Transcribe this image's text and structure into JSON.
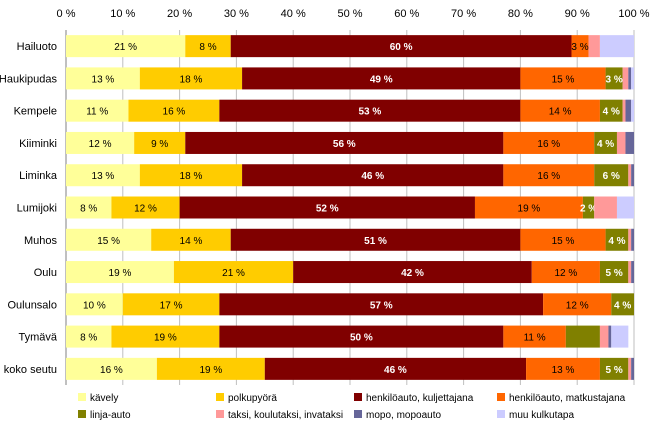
{
  "chart_data": {
    "type": "bar",
    "orientation": "horizontal",
    "stacked": true,
    "normalized": true,
    "title": "",
    "xlabel": "",
    "ylabel": "",
    "xlim": [
      0,
      100
    ],
    "grid": true,
    "legend_position": "bottom",
    "x_ticks": [
      0,
      10,
      20,
      30,
      40,
      50,
      60,
      70,
      80,
      90,
      100
    ],
    "tick_suffix": " %",
    "categories": [
      "Hailuoto",
      "Haukipudas",
      "Kempele",
      "Kiiminki",
      "Liminka",
      "Lumijoki",
      "Muhos",
      "Oulu",
      "Oulunsalo",
      "Tymävä",
      "koko seutu"
    ],
    "series": [
      {
        "name": "kävely",
        "color": "#FFFF99",
        "values": [
          21,
          13,
          11,
          12,
          13,
          8,
          15,
          19,
          10,
          8,
          16
        ],
        "labels": [
          "21 %",
          "13 %",
          "11 %",
          "12 %",
          "13 %",
          "8 %",
          "15 %",
          "19 %",
          "10 %",
          "8 %",
          "16 %"
        ]
      },
      {
        "name": "polkupyörä",
        "color": "#FFCC00",
        "values": [
          8,
          18,
          16,
          9,
          18,
          12,
          14,
          21,
          17,
          19,
          19
        ],
        "labels": [
          "8 %",
          "18 %",
          "16 %",
          "9 %",
          "18 %",
          "12 %",
          "14 %",
          "21 %",
          "17 %",
          "19 %",
          "19 %"
        ]
      },
      {
        "name": "henkilöauto, kuljettajana",
        "color": "#800000",
        "values": [
          60,
          49,
          53,
          56,
          46,
          52,
          51,
          42,
          57,
          50,
          46
        ],
        "labels": [
          "60 %",
          "49 %",
          "53 %",
          "56 %",
          "46 %",
          "52 %",
          "51 %",
          "42 %",
          "57 %",
          "50 %",
          "46 %"
        ]
      },
      {
        "name": "henkilöauto, matkustajana",
        "color": "#FF6600",
        "values": [
          3,
          15,
          14,
          16,
          16,
          19,
          15,
          12,
          12,
          11,
          13
        ],
        "labels": [
          "3 %",
          "15 %",
          "14 %",
          "16 %",
          "16 %",
          "19 %",
          "15 %",
          "12 %",
          "12 %",
          "11 %",
          "13 %"
        ]
      },
      {
        "name": "linja-auto",
        "color": "#808000",
        "values": [
          0,
          3,
          4,
          4,
          6,
          2,
          4,
          5,
          4,
          6,
          5
        ],
        "labels": [
          "",
          "3 %",
          "4 %",
          "4 %",
          "6 %",
          "2 %",
          "4 %",
          "5 %",
          "4 %",
          "",
          "5 %"
        ]
      },
      {
        "name": "taksi, koulutaksi, invataksi",
        "color": "#FF9999",
        "values": [
          2,
          1,
          0.5,
          1.5,
          0.5,
          4,
          0.5,
          0.5,
          0,
          1.5,
          0.5
        ],
        "labels": [
          "",
          "",
          "",
          "",
          "",
          "",
          "",
          "",
          "",
          "",
          ""
        ]
      },
      {
        "name": "mopo, mopoauto",
        "color": "#666699",
        "values": [
          0,
          0.5,
          1,
          1.5,
          0.5,
          0,
          0.5,
          0.5,
          0,
          0.5,
          0.5
        ],
        "labels": [
          "",
          "",
          "",
          "",
          "",
          "",
          "",
          "",
          "",
          "",
          ""
        ]
      },
      {
        "name": "muu kulkutapa",
        "color": "#CCCCFF",
        "values": [
          6,
          0.5,
          0.5,
          0,
          0,
          3,
          0,
          0,
          0,
          3,
          0
        ],
        "labels": [
          "",
          "",
          "",
          "",
          "",
          "",
          "",
          "",
          "",
          "",
          ""
        ]
      }
    ]
  }
}
